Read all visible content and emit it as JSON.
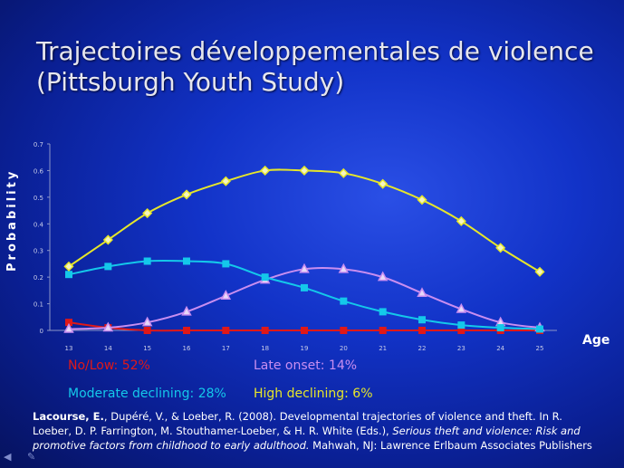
{
  "slide": {
    "title_line1": "Trajectoires développementales de violence",
    "title_line2": "(Pittsburgh Youth Study)"
  },
  "legend": {
    "no_low": "No/Low: 52%",
    "late_onset": "Late onset: 14%",
    "moderate_declining": "Moderate declining: 28%",
    "high_declining": "High declining: 6%"
  },
  "reference": {
    "authors_bold": "Lacourse, E.",
    "authors_rest": ", Dupéré, V., & Loeber, R. (2008). Developmental trajectories of violence and theft. In R. Loeber, D. P. Farrington, M. Stouthamer-Loeber, & H. R. White (Eds.), ",
    "book_italic": "Serious theft and violence: Risk and promotive factors from childhood to early adulthood.",
    "publisher": " Mahwah, NJ: Lawrence Erlbaum Associates Publishers"
  },
  "chart_data": {
    "type": "line",
    "xlabel": "Age",
    "ylabel": "Probability",
    "x": [
      13,
      14,
      15,
      16,
      17,
      18,
      19,
      20,
      21,
      22,
      23,
      24,
      25
    ],
    "ylim": [
      0,
      0.7
    ],
    "yticks": [
      "0",
      "0.1",
      "0.2",
      "0.3",
      "0.4",
      "0.5",
      "0.6",
      "0.7"
    ],
    "grid": false,
    "series": [
      {
        "name": "No/Low: 52%",
        "color": "#e01818",
        "marker": "square",
        "values": [
          0.03,
          0.01,
          0.0,
          0.0,
          0.0,
          0.0,
          0.0,
          0.0,
          0.0,
          0.0,
          0.0,
          0.0,
          0.0
        ]
      },
      {
        "name": "Late onset: 14%",
        "color": "#c98ef0",
        "marker": "triangle",
        "values": [
          0.005,
          0.01,
          0.03,
          0.07,
          0.13,
          0.19,
          0.23,
          0.23,
          0.2,
          0.14,
          0.08,
          0.03,
          0.01
        ]
      },
      {
        "name": "Moderate declining: 28%",
        "color": "#14c8ea",
        "marker": "square",
        "values": [
          0.21,
          0.24,
          0.26,
          0.26,
          0.25,
          0.2,
          0.16,
          0.11,
          0.07,
          0.04,
          0.02,
          0.01,
          0.005
        ]
      },
      {
        "name": "High declining: 6%",
        "color": "#e6e62a",
        "marker": "diamond",
        "values": [
          0.24,
          0.34,
          0.44,
          0.51,
          0.56,
          0.6,
          0.6,
          0.59,
          0.55,
          0.49,
          0.41,
          0.31,
          0.22
        ]
      }
    ]
  }
}
